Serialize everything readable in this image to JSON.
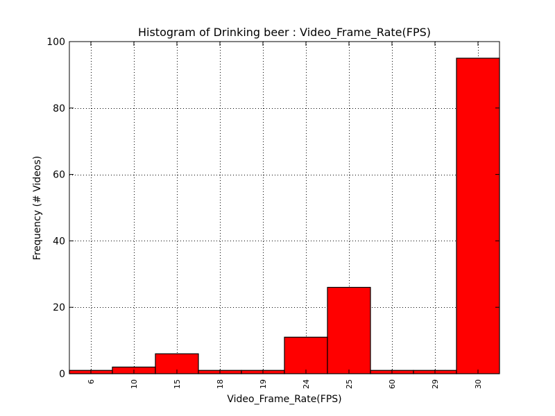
{
  "chart_data": {
    "type": "bar",
    "title": "Histogram of Drinking beer : Video_Frame_Rate(FPS)",
    "xlabel": "Video_Frame_Rate(FPS)",
    "ylabel": "Frequency (# Videos)",
    "categories": [
      "6",
      "10",
      "15",
      "18",
      "19",
      "24",
      "25",
      "60",
      "29",
      "30"
    ],
    "values": [
      1,
      2,
      6,
      1,
      1,
      11,
      26,
      1,
      1,
      95
    ],
    "ylim": [
      0,
      100
    ],
    "yticks": [
      0,
      20,
      40,
      60,
      80,
      100
    ],
    "grid": true,
    "bar_color": "#ff0000",
    "edge_color": "#000000"
  }
}
